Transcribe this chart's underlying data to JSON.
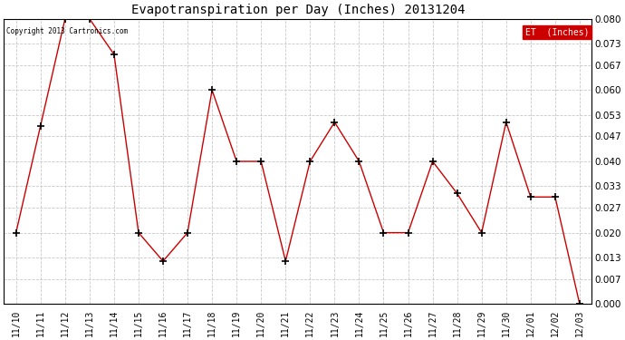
{
  "title": "Evapotranspiration per Day (Inches) 20131204",
  "copyright": "Copyright 2013 Cartronics.com",
  "legend_label": "ET  (Inches)",
  "legend_bg": "#cc0000",
  "line_color": "#cc0000",
  "marker_color": "#000000",
  "background_color": "#ffffff",
  "grid_color": "#c8c8c8",
  "dates": [
    "11/10",
    "11/11",
    "11/12",
    "11/13",
    "11/14",
    "11/15",
    "11/16",
    "11/17",
    "11/18",
    "11/19",
    "11/20",
    "11/21",
    "11/22",
    "11/23",
    "11/24",
    "11/25",
    "11/26",
    "11/27",
    "11/28",
    "11/29",
    "11/30",
    "12/01",
    "12/02",
    "12/03"
  ],
  "values": [
    0.02,
    0.05,
    0.08,
    0.08,
    0.07,
    0.02,
    0.012,
    0.02,
    0.06,
    0.04,
    0.04,
    0.012,
    0.04,
    0.051,
    0.04,
    0.02,
    0.02,
    0.04,
    0.031,
    0.02,
    0.051,
    0.03,
    0.03,
    0.0
  ],
  "ylim": [
    0.0,
    0.08
  ],
  "yticks": [
    0.0,
    0.007,
    0.013,
    0.02,
    0.027,
    0.033,
    0.04,
    0.047,
    0.053,
    0.06,
    0.067,
    0.073,
    0.08
  ]
}
